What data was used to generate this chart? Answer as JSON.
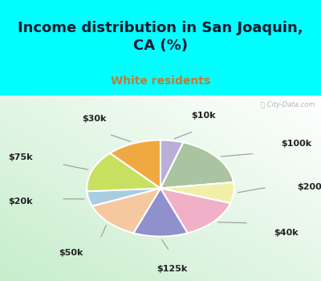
{
  "title": "Income distribution in San Joaquin,\nCA (%)",
  "subtitle": "White residents",
  "bg_cyan": "#00FFFF",
  "labels": [
    "$10k",
    "$100k",
    "$200k",
    "$40k",
    "$125k",
    "$50k",
    "$20k",
    "$75k",
    "$30k"
  ],
  "sizes": [
    5,
    18,
    7,
    14,
    12,
    13,
    5,
    14,
    12
  ],
  "colors": [
    "#b8aed8",
    "#a8c4a0",
    "#f0f0a8",
    "#f0b0c8",
    "#9090cc",
    "#f5c8a0",
    "#a8cce0",
    "#c8e060",
    "#f0a840"
  ],
  "startangle": 90,
  "title_fontsize": 13,
  "subtitle_fontsize": 10,
  "label_fontsize": 8,
  "watermark": "City-Data.com"
}
